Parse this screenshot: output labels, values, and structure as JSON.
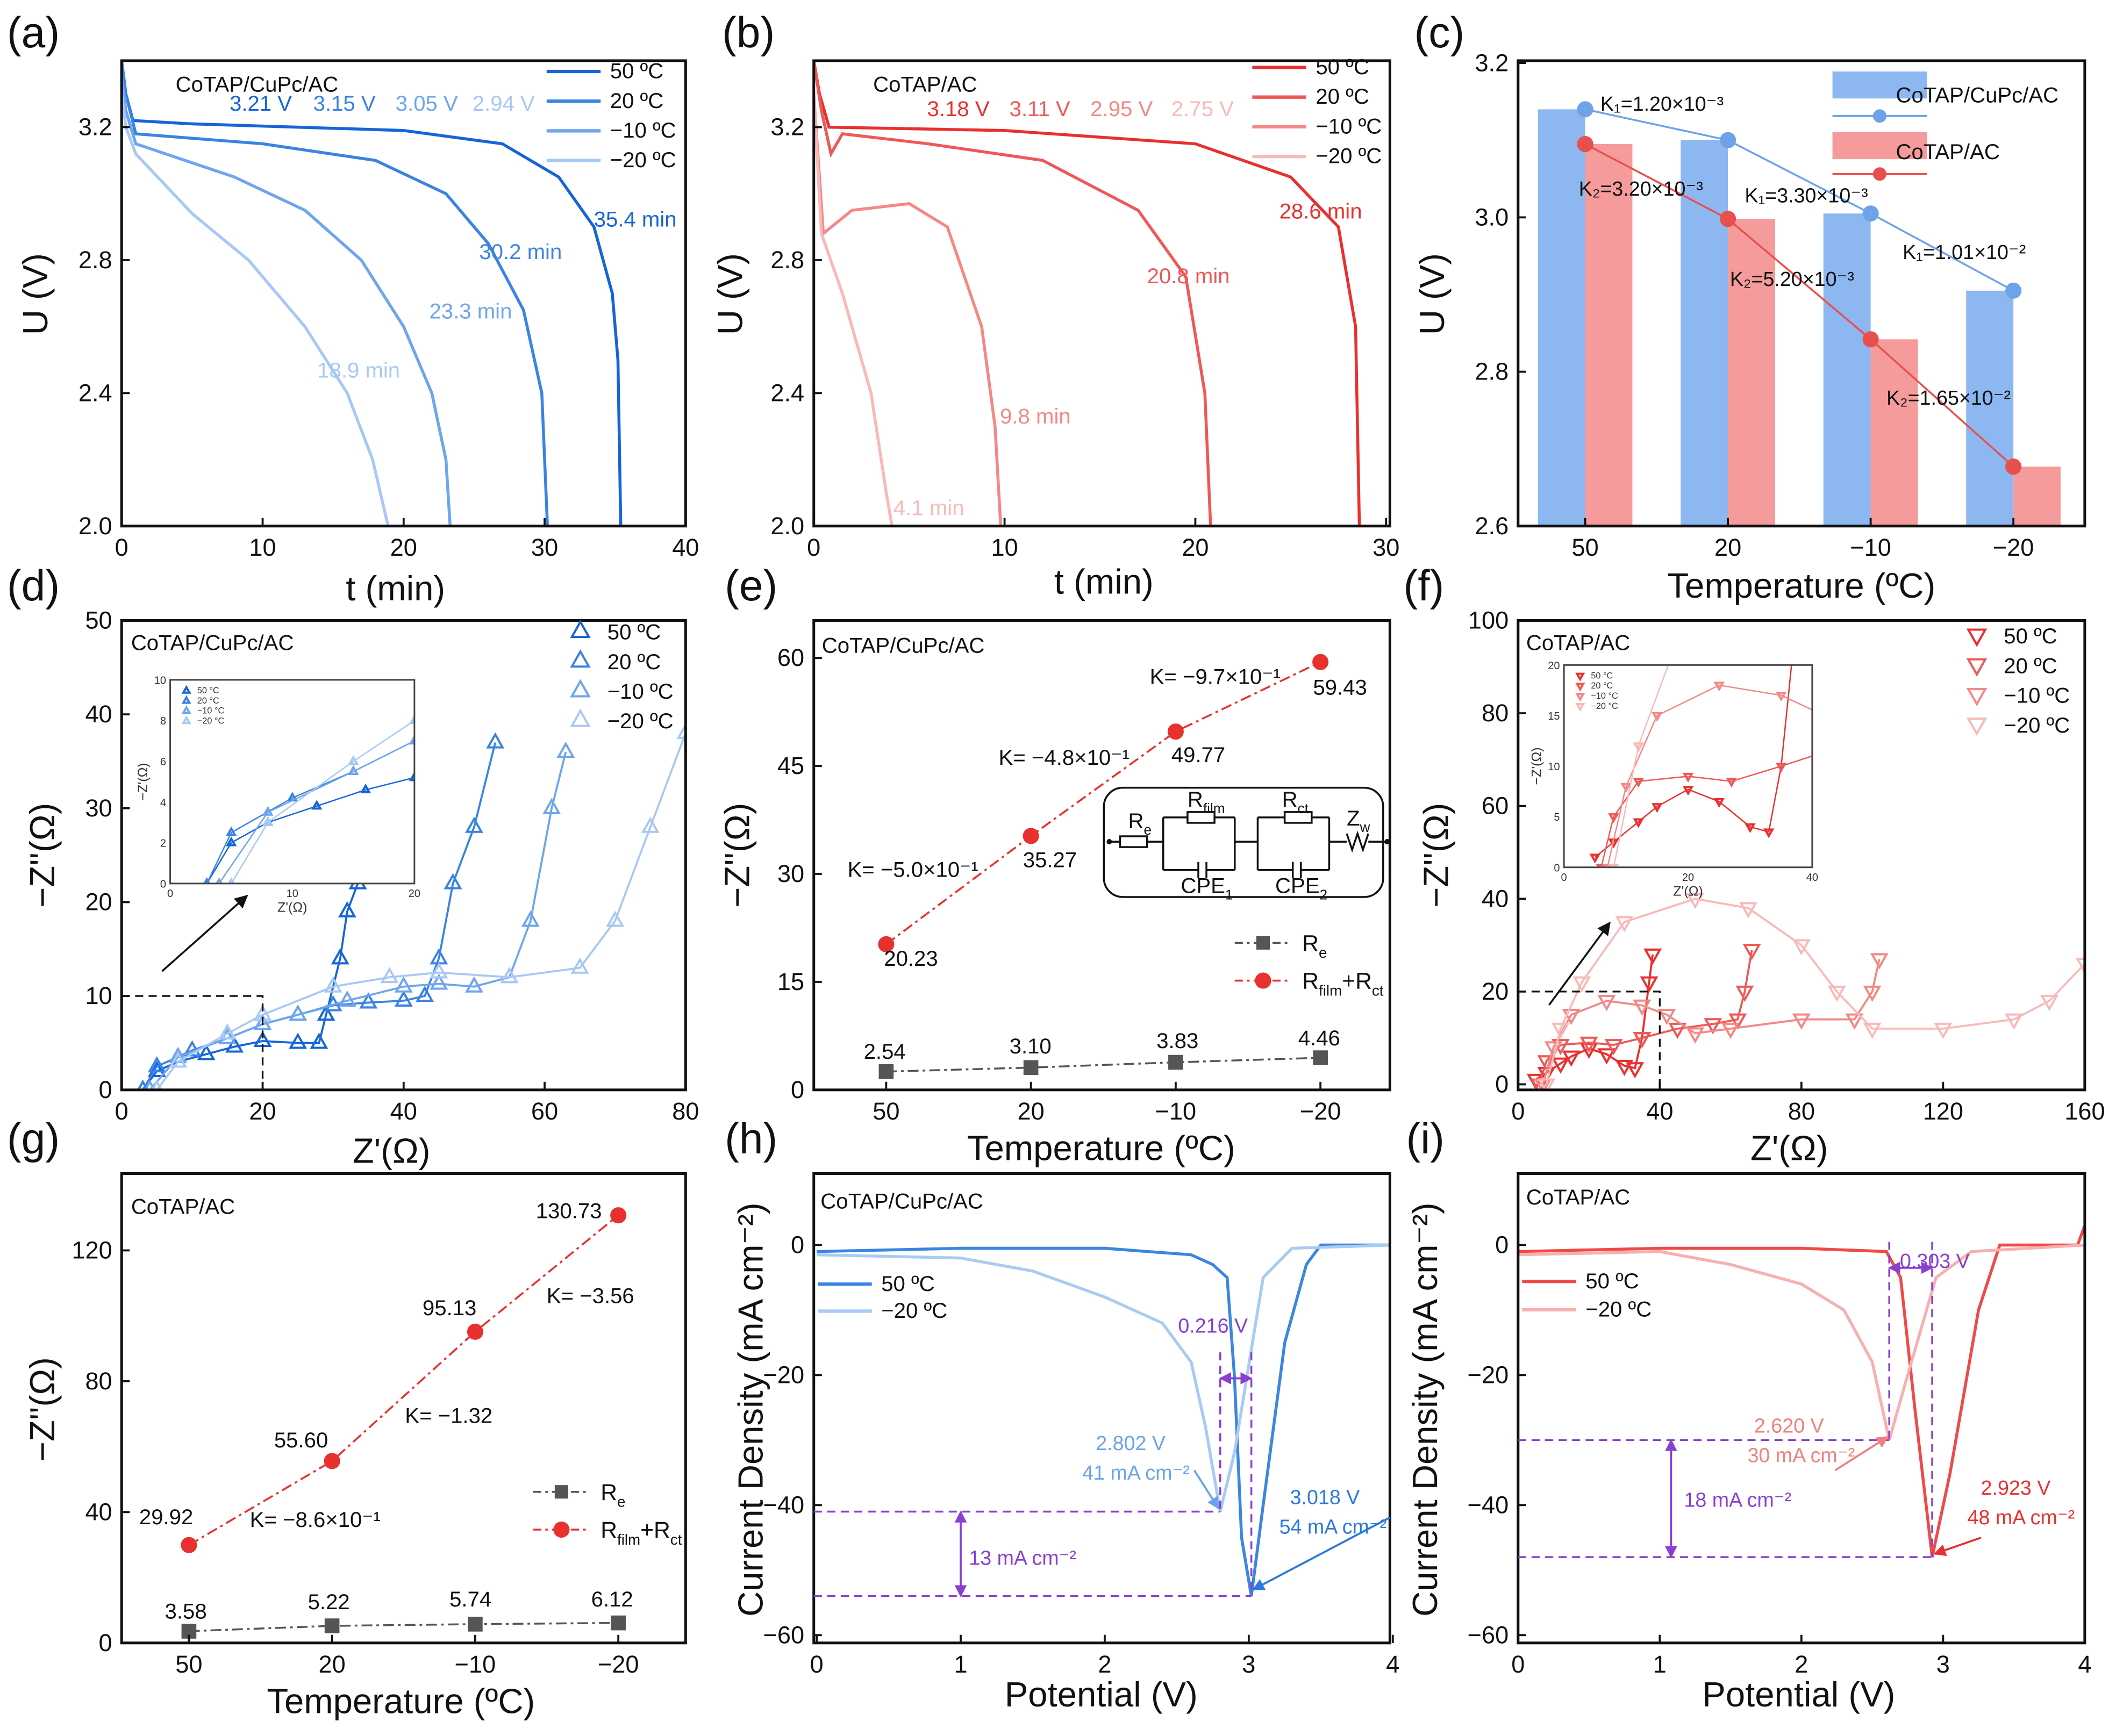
{
  "chart_data": [
    {
      "panel": "(a)",
      "type": "line",
      "title": "CoTAP/CuPc/AC",
      "xlabel": "t (min)",
      "ylabel": "U (V)",
      "xlim": [
        0,
        40
      ],
      "ylim": [
        2.0,
        3.4
      ],
      "xticks": [
        "0",
        "10",
        "20",
        "30",
        "40"
      ],
      "yticks": [
        "2.0",
        "2.4",
        "2.8",
        "3.2"
      ],
      "legend_position": "top-right",
      "series": [
        {
          "name": "50 ºC",
          "kind": "curve",
          "color": "#1565d8",
          "x": [
            0,
            0.3,
            0.8,
            5,
            20,
            27,
            31,
            33.5,
            34.8,
            35.2,
            35.4
          ],
          "y": [
            3.4,
            3.3,
            3.22,
            3.21,
            3.19,
            3.15,
            3.05,
            2.9,
            2.7,
            2.5,
            2.0
          ]
        },
        {
          "name": "20 ºC",
          "kind": "curve",
          "color": "#3a83e4",
          "x": [
            0,
            0.3,
            1,
            10,
            18,
            23,
            26,
            28.5,
            29.8,
            30.2
          ],
          "y": [
            3.4,
            3.3,
            3.18,
            3.15,
            3.1,
            3.0,
            2.85,
            2.65,
            2.4,
            2.0
          ]
        },
        {
          "name": "−10 ºC",
          "kind": "curve",
          "color": "#6ea5ee",
          "x": [
            0,
            0.3,
            1,
            8,
            13,
            17,
            20,
            22,
            23,
            23.3
          ],
          "y": [
            3.35,
            3.25,
            3.15,
            3.05,
            2.95,
            2.8,
            2.6,
            2.4,
            2.2,
            2.0
          ]
        },
        {
          "name": "−20 ºC",
          "kind": "curve",
          "color": "#a8c8f5",
          "x": [
            0,
            0.3,
            1,
            5,
            9,
            13,
            16,
            17.8,
            18.9
          ],
          "y": [
            3.3,
            3.2,
            3.12,
            2.94,
            2.8,
            2.6,
            2.4,
            2.2,
            2.0
          ]
        }
      ],
      "annotations": [
        "3.21 V",
        "3.15 V",
        "3.05 V",
        "2.94 V",
        "35.4 min",
        "30.2 min",
        "23.3 min",
        "18.9 min"
      ]
    },
    {
      "panel": "(b)",
      "type": "line",
      "title": "CoTAP/AC",
      "xlabel": "t (min)",
      "ylabel": "U (V)",
      "xlim": [
        0,
        30
      ],
      "ylim": [
        2.0,
        3.4
      ],
      "xticks": [
        "0",
        "10",
        "20",
        "30"
      ],
      "yticks": [
        "2.0",
        "2.4",
        "2.8",
        "3.2"
      ],
      "legend_position": "top-right",
      "series": [
        {
          "name": "50 ºC",
          "kind": "curve",
          "color": "#e8302e",
          "x": [
            0,
            0.3,
            0.8,
            10,
            20,
            25,
            27.5,
            28.4,
            28.6
          ],
          "y": [
            3.4,
            3.3,
            3.2,
            3.19,
            3.15,
            3.05,
            2.9,
            2.6,
            2.0
          ]
        },
        {
          "name": "20 ºC",
          "kind": "curve",
          "color": "#ee5856",
          "x": [
            0,
            0.4,
            0.9,
            1.5,
            6,
            12,
            17,
            19.5,
            20.5,
            20.8
          ],
          "y": [
            3.4,
            3.25,
            3.12,
            3.18,
            3.15,
            3.1,
            2.95,
            2.75,
            2.4,
            2.0
          ]
        },
        {
          "name": "−10 ºC",
          "kind": "curve",
          "color": "#f38886",
          "x": [
            0,
            0.5,
            2,
            5,
            7,
            8.8,
            9.5,
            9.8
          ],
          "y": [
            3.3,
            2.88,
            2.95,
            2.97,
            2.9,
            2.6,
            2.3,
            2.0
          ]
        },
        {
          "name": "−20 ºC",
          "kind": "curve",
          "color": "#f9b9b8",
          "x": [
            0,
            0.4,
            1.5,
            3,
            3.8,
            4.1
          ],
          "y": [
            3.3,
            2.88,
            2.7,
            2.4,
            2.1,
            2.0
          ]
        }
      ],
      "annotations": [
        "3.18 V",
        "3.11 V",
        "2.95 V",
        "2.75 V",
        "28.6 min",
        "20.8 min",
        "9.8 min",
        "4.1 min"
      ]
    },
    {
      "panel": "(c)",
      "type": "bar",
      "xlabel": "Temperature (ºC)",
      "ylabel": "U (V)",
      "categories": [
        "50",
        "20",
        "−10",
        "−20"
      ],
      "ylim": [
        2.6,
        3.2
      ],
      "yticks": [
        "2.6",
        "2.8",
        "3.0",
        "3.2"
      ],
      "legend_position": "top-right",
      "series": [
        {
          "name": "CoTAP/CuPc/AC",
          "kind": "bar",
          "color": "#8db7f0",
          "values": [
            3.14,
            3.1,
            3.005,
            2.905
          ]
        },
        {
          "name": "CoTAP/AC",
          "kind": "bar",
          "color": "#f59b9b",
          "values": [
            3.095,
            2.998,
            2.842,
            2.677
          ]
        },
        {
          "kind": "circle",
          "color": "#6ea3ea",
          "values": [
            3.14,
            3.1,
            3.005,
            2.905
          ]
        },
        {
          "kind": "circle",
          "color": "#e8504e",
          "values": [
            3.095,
            2.998,
            2.842,
            2.677
          ]
        }
      ],
      "annotations": [
        "K₁=1.20×10⁻³",
        "K₂=3.20×10⁻³",
        "K₁=3.30×10⁻³",
        "K₁=1.01×10⁻²",
        "K₂=5.20×10⁻³",
        "K₂=1.65×10⁻²"
      ]
    },
    {
      "panel": "(d)",
      "type": "scatter",
      "title": "CoTAP/CuPc/AC",
      "xlabel": "Z'(Ω)",
      "ylabel": "−Z''(Ω)",
      "xlim": [
        0,
        80
      ],
      "ylim": [
        0,
        50
      ],
      "xticks": [
        "0",
        "20",
        "40",
        "60",
        "80"
      ],
      "yticks": [
        "0",
        "10",
        "20",
        "30",
        "40",
        "50"
      ],
      "legend_position": "top-right",
      "series": [
        {
          "name": "50 ºC",
          "kind": "triangle-up",
          "color": "#1565d8",
          "x": [
            3,
            5,
            8,
            12,
            16,
            20,
            25,
            28,
            29,
            31,
            32,
            33.5
          ],
          "y": [
            0,
            2,
            3,
            3.8,
            4.6,
            5.2,
            5,
            5,
            8,
            14,
            19,
            22
          ]
        },
        {
          "name": "20 ºC",
          "kind": "triangle-up",
          "color": "#3a83e4",
          "x": [
            3,
            5,
            10,
            15,
            20,
            25,
            30,
            35,
            40,
            43,
            45,
            47,
            50,
            53
          ],
          "y": [
            0,
            2.5,
            4.2,
            5.5,
            7,
            8,
            9,
            9.3,
            9.5,
            10,
            14,
            22,
            28,
            37
          ]
        },
        {
          "name": "−10 ºC",
          "kind": "triangle-up",
          "color": "#6ea5ee",
          "x": [
            4,
            8,
            15,
            20,
            25,
            32,
            40,
            45,
            50,
            55,
            58,
            61,
            63
          ],
          "y": [
            0,
            3.5,
            5.5,
            7,
            8,
            9.5,
            11,
            11.3,
            11,
            12,
            18,
            30,
            36
          ]
        },
        {
          "name": "−20 ºC",
          "kind": "triangle-up",
          "color": "#a8c8f5",
          "x": [
            5,
            8,
            15,
            20,
            30,
            38,
            45,
            55,
            65,
            70,
            75,
            80
          ],
          "y": [
            0,
            3,
            6,
            8,
            11,
            12,
            12.5,
            12,
            13,
            18,
            28,
            38
          ]
        }
      ],
      "inset": {
        "xlabel": "Z'(Ω)",
        "ylabel": "−Z'(Ω)",
        "xlim": [
          0,
          20
        ],
        "ylim": [
          0,
          10
        ],
        "xticks": [
          "0",
          "10",
          "20"
        ],
        "yticks": [
          "0",
          "2",
          "4",
          "6",
          "8",
          "10"
        ],
        "legend": [
          "50 °C",
          "20 °C",
          "−10 °C",
          "−20 °C"
        ]
      }
    },
    {
      "panel": "(e)",
      "type": "line",
      "title": "CoTAP/CuPc/AC",
      "xlabel": "Temperature (ºC)",
      "ylabel": "−Z''(Ω)",
      "categories": [
        "50",
        "20",
        "−10",
        "−20"
      ],
      "ylim": [
        0,
        65
      ],
      "yticks": [
        "0",
        "15",
        "30",
        "45",
        "60"
      ],
      "legend_position": "lower-right",
      "series": [
        {
          "name_parts": [
            "R",
            "e"
          ],
          "kind": "square",
          "color": "#555555",
          "values": [
            2.54,
            3.1,
            3.83,
            4.46
          ]
        },
        {
          "name_parts": [
            "R",
            "film",
            "+R",
            "ct"
          ],
          "kind": "circle",
          "color": "#e8312f",
          "values": [
            20.23,
            35.27,
            49.77,
            59.43
          ]
        }
      ],
      "annotations": [
        "20.23",
        "35.27",
        "49.77",
        "59.43",
        "K= −5.0×10⁻¹",
        "K= −4.8×10⁻¹",
        "K= −9.7×10⁻¹",
        "2.54",
        "3.10",
        "3.83",
        "4.46"
      ],
      "circuit": {
        "elements": [
          [
            "R",
            "e"
          ],
          [
            "R",
            "film"
          ],
          [
            "R",
            "ct"
          ],
          [
            "Z",
            "w"
          ],
          [
            "CPE",
            "1"
          ],
          [
            "CPE",
            "2"
          ]
        ]
      }
    },
    {
      "panel": "(f)",
      "type": "scatter",
      "title": "CoTAP/AC",
      "xlabel": "Z'(Ω)",
      "ylabel": "−Z''(Ω)",
      "xlim": [
        0,
        160
      ],
      "ylim": [
        0,
        100
      ],
      "xticks": [
        "0",
        "40",
        "80",
        "120",
        "160"
      ],
      "yticks": [
        "0",
        "20",
        "40",
        "60",
        "80",
        "100"
      ],
      "legend_position": "top-right",
      "series": [
        {
          "name": "50 ºC",
          "kind": "triangle-down",
          "color": "#e8302e",
          "x": [
            5,
            8,
            12,
            15,
            20,
            25,
            30,
            33,
            35,
            37,
            38
          ],
          "y": [
            1,
            2.5,
            4.5,
            6,
            7.7,
            6.5,
            4,
            3.5,
            10,
            22,
            28
          ]
        },
        {
          "name": "20 ºC",
          "kind": "triangle-down",
          "color": "#ee5856",
          "x": [
            6,
            8,
            12,
            20,
            27,
            35,
            45,
            55,
            62,
            64,
            66
          ],
          "y": [
            0,
            5,
            8.5,
            9,
            8.5,
            10,
            12,
            13,
            14,
            20,
            29
          ]
        },
        {
          "name": "−10 ºC",
          "kind": "triangle-down",
          "color": "#f38886",
          "x": [
            7,
            10,
            15,
            25,
            35,
            42,
            50,
            60,
            80,
            95,
            100,
            102
          ],
          "y": [
            0,
            8,
            15,
            18,
            17,
            15,
            11,
            12,
            14,
            14,
            20,
            27
          ]
        },
        {
          "name": "−20 ºC",
          "kind": "triangle-down",
          "color": "#f9b9b8",
          "x": [
            8,
            12,
            18,
            30,
            50,
            65,
            80,
            90,
            100,
            120,
            140,
            150,
            160
          ],
          "y": [
            0,
            12,
            22,
            35,
            40,
            38,
            30,
            20,
            12,
            12,
            14,
            18,
            26
          ]
        }
      ],
      "inset": {
        "xlabel": "Z'(Ω)",
        "ylabel": "−Z'(Ω)",
        "xlim": [
          0,
          40
        ],
        "ylim": [
          0,
          20
        ],
        "xticks": [
          "0",
          "20",
          "40"
        ],
        "yticks": [
          "0",
          "5",
          "10",
          "15",
          "20"
        ],
        "legend": [
          "50 °C",
          "20 °C",
          "−10 °C",
          "−20 °C"
        ]
      }
    },
    {
      "panel": "(g)",
      "type": "line",
      "title": "CoTAP/AC",
      "xlabel": "Temperature (ºC)",
      "ylabel": "−Z''(Ω)",
      "categories": [
        "50",
        "20",
        "−10",
        "−20"
      ],
      "ylim": [
        0,
        143
      ],
      "yticks": [
        "0",
        "40",
        "80",
        "120"
      ],
      "legend_position": "lower-right",
      "series": [
        {
          "name_parts": [
            "R",
            "e"
          ],
          "kind": "square",
          "color": "#555555",
          "values": [
            3.58,
            5.22,
            5.74,
            6.12
          ]
        },
        {
          "name_parts": [
            "R",
            "film",
            "+R",
            "ct"
          ],
          "kind": "circle",
          "color": "#e8312f",
          "values": [
            29.92,
            55.6,
            95.13,
            130.73
          ]
        }
      ],
      "annotations": [
        "29.92",
        "55.60",
        "95.13",
        "130.73",
        "K= −8.6×10⁻¹",
        "K= −1.32",
        "K= −3.56",
        "3.58",
        "5.22",
        "5.74",
        "6.12"
      ]
    },
    {
      "panel": "(h)",
      "type": "line",
      "title": "CoTAP/CuPc/AC",
      "xlabel": "Potential (V)",
      "ylabel": "Current Density (mA cm⁻²)",
      "xlim": [
        0,
        4
      ],
      "ylim": [
        -61,
        11
      ],
      "xticks": [
        "0",
        "1",
        "2",
        "3",
        "4"
      ],
      "yticks": [
        "0",
        "−20",
        "−40",
        "−60"
      ],
      "legend_position": "top-left",
      "series": [
        {
          "name": "50 ºC",
          "kind": "curve",
          "color": "#3a86e0",
          "x": [
            0,
            1,
            2,
            2.6,
            2.75,
            2.85,
            2.9,
            2.95,
            3.018,
            3.1,
            3.25,
            3.4,
            3.5,
            4
          ],
          "y": [
            -1,
            -0.5,
            -0.5,
            -1.5,
            -3,
            -5,
            -20,
            -45,
            -54,
            -40,
            -15,
            -3,
            0,
            0
          ]
        },
        {
          "name": "−20 ºC",
          "kind": "curve",
          "color": "#a9cbf3",
          "x": [
            0,
            1,
            1.5,
            2,
            2.4,
            2.6,
            2.7,
            2.802,
            2.9,
            3.1,
            3.3,
            4
          ],
          "y": [
            -1.5,
            -2,
            -4,
            -8,
            -12,
            -18,
            -28,
            -41,
            -32,
            -5,
            -0.5,
            0
          ]
        }
      ],
      "annotations": [
        "0.216 V",
        "2.802 V",
        "41 mA cm⁻²",
        "3.018 V",
        "54 mA cm⁻²",
        "13 mA cm⁻²"
      ]
    },
    {
      "panel": "(i)",
      "type": "line",
      "title": "CoTAP/AC",
      "xlabel": "Potential (V)",
      "ylabel": "Current Density (mA cm⁻²)",
      "xlim": [
        0,
        4
      ],
      "ylim": [
        -61,
        11
      ],
      "xticks": [
        "0",
        "1",
        "2",
        "3",
        "4"
      ],
      "yticks": [
        "0",
        "−20",
        "−40",
        "−60"
      ],
      "legend_position": "top-left",
      "series": [
        {
          "name": "50 ºC",
          "kind": "curve",
          "color": "#ee4a48",
          "x": [
            0,
            1,
            2,
            2.6,
            2.7,
            2.8,
            2.923,
            3.05,
            3.25,
            3.4,
            3.95,
            4
          ],
          "y": [
            -1,
            -0.5,
            -0.5,
            -1,
            -5,
            -25,
            -48,
            -35,
            -10,
            0,
            0,
            3
          ]
        },
        {
          "name": "−20 ºC",
          "kind": "curve",
          "color": "#f7b0b0",
          "x": [
            0,
            1,
            1.5,
            2,
            2.3,
            2.5,
            2.62,
            2.75,
            2.95,
            3.2,
            4
          ],
          "y": [
            -1.5,
            -1,
            -3,
            -6,
            -10,
            -18,
            -30,
            -20,
            -5,
            -1,
            0
          ]
        }
      ],
      "annotations": [
        "0.303 V",
        "2.620 V",
        "30 mA cm⁻²",
        "2.923 V",
        "48 mA cm⁻²",
        "18 mA cm⁻²"
      ]
    }
  ]
}
